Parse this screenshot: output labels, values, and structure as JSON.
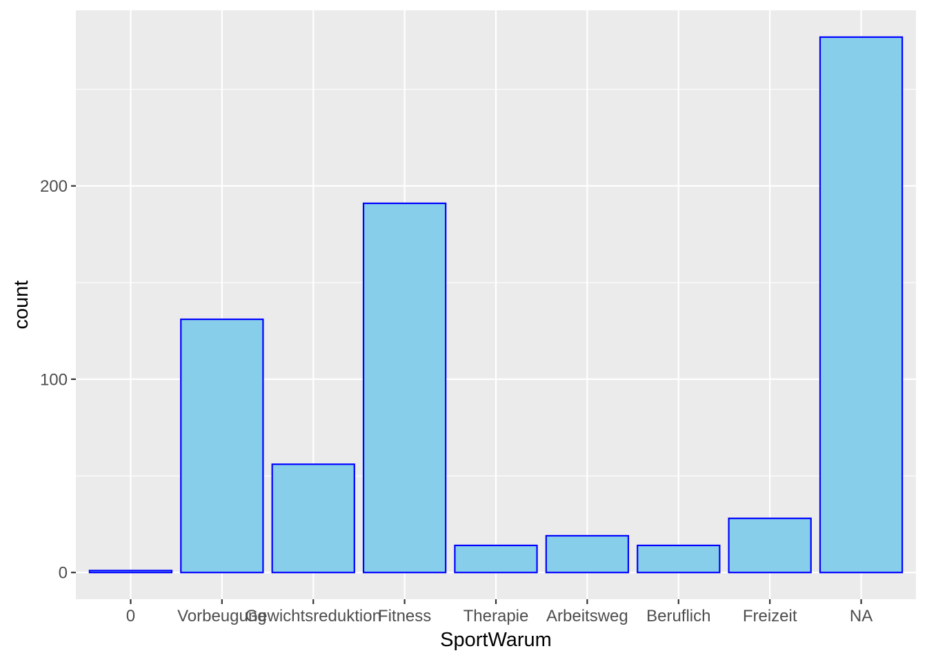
{
  "chart_data": {
    "type": "bar",
    "title": "",
    "xlabel": "SportWarum",
    "ylabel": "count",
    "categories": [
      "0",
      "Vorbeugung",
      "Gewichtsreduktion",
      "Fitness",
      "Therapie",
      "Arbeitsweg",
      "Beruflich",
      "Freizeit",
      "NA"
    ],
    "values": [
      1,
      131,
      56,
      191,
      14,
      19,
      14,
      28,
      277
    ],
    "ylim": [
      -13.85,
      290.85
    ],
    "yticks": [
      0,
      100,
      200
    ],
    "grid": true,
    "legend": "none",
    "colors": {
      "panel_background": "#ebebeb",
      "grid": "#ffffff",
      "bar_fill": "#87ceeb",
      "bar_outline": "#0000ff",
      "tick_label": "#4d4d4d",
      "axis_title": "#000000",
      "tick_mark": "#333333"
    }
  }
}
